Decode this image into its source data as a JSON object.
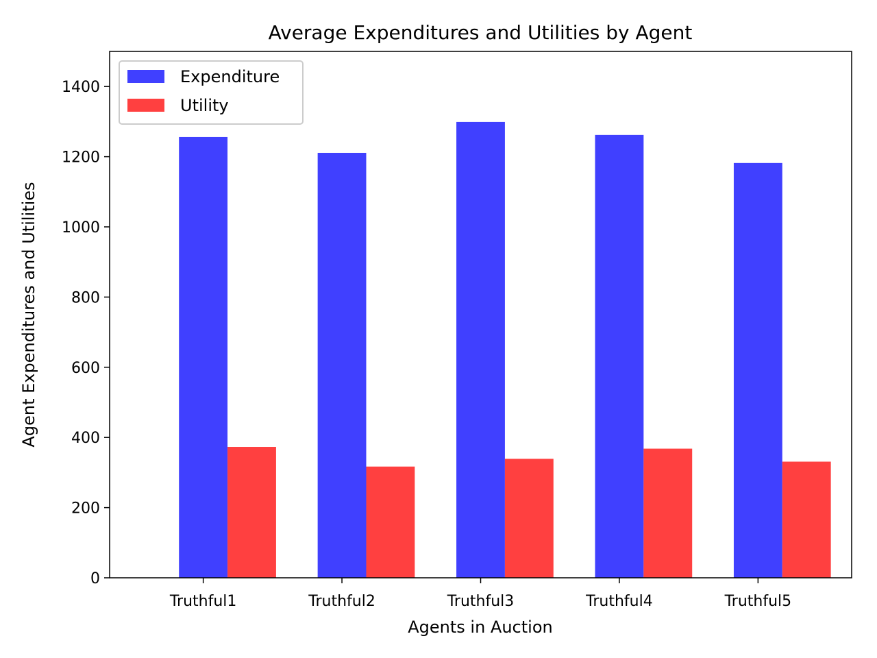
{
  "chart_data": {
    "type": "bar",
    "title": "Average Expenditures and Utilities by Agent",
    "xlabel": "Agents in Auction",
    "ylabel": "Agent Expenditures and Utilities",
    "categories": [
      "Truthful1",
      "Truthful2",
      "Truthful3",
      "Truthful4",
      "Truthful5"
    ],
    "series": [
      {
        "name": "Expenditure",
        "color": "#4040ff",
        "values": [
          1256,
          1211,
          1299,
          1262,
          1182
        ]
      },
      {
        "name": "Utility",
        "color": "#ff4040",
        "values": [
          373,
          317,
          339,
          368,
          331
        ]
      }
    ],
    "ylim": [
      0,
      1500
    ],
    "yticks": [
      0,
      200,
      400,
      600,
      800,
      1000,
      1200,
      1400
    ],
    "legend": "top-left",
    "grid": false
  }
}
